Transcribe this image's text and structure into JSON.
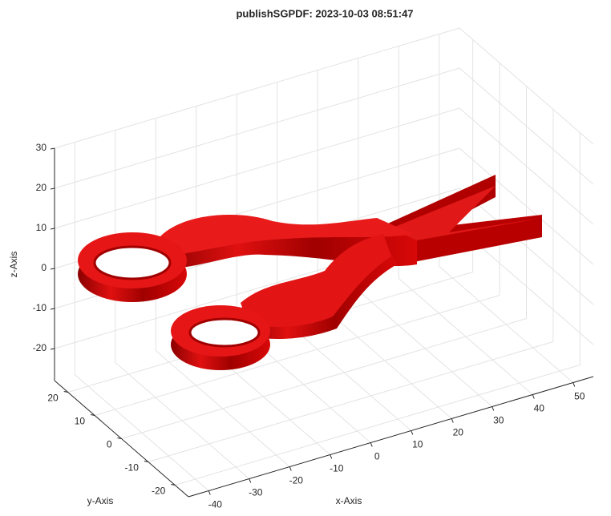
{
  "chart_data": {
    "type": "surface3d",
    "title": "publishSGPDF: 2023-10-03 08:51:47",
    "x_label": "x-Axis",
    "y_label": "y-Axis",
    "z_label": "z-Axis",
    "xlim": [
      -45,
      55
    ],
    "ylim": [
      -25,
      25
    ],
    "zlim": [
      -28,
      30
    ],
    "xticks": [
      -40,
      -30,
      -20,
      -10,
      0,
      10,
      20,
      30,
      40,
      50
    ],
    "yticks": [
      -20,
      -10,
      0,
      10,
      20
    ],
    "zticks": [
      -20,
      -10,
      0,
      10,
      20,
      30
    ],
    "grid": true,
    "color": "#d40000"
  }
}
